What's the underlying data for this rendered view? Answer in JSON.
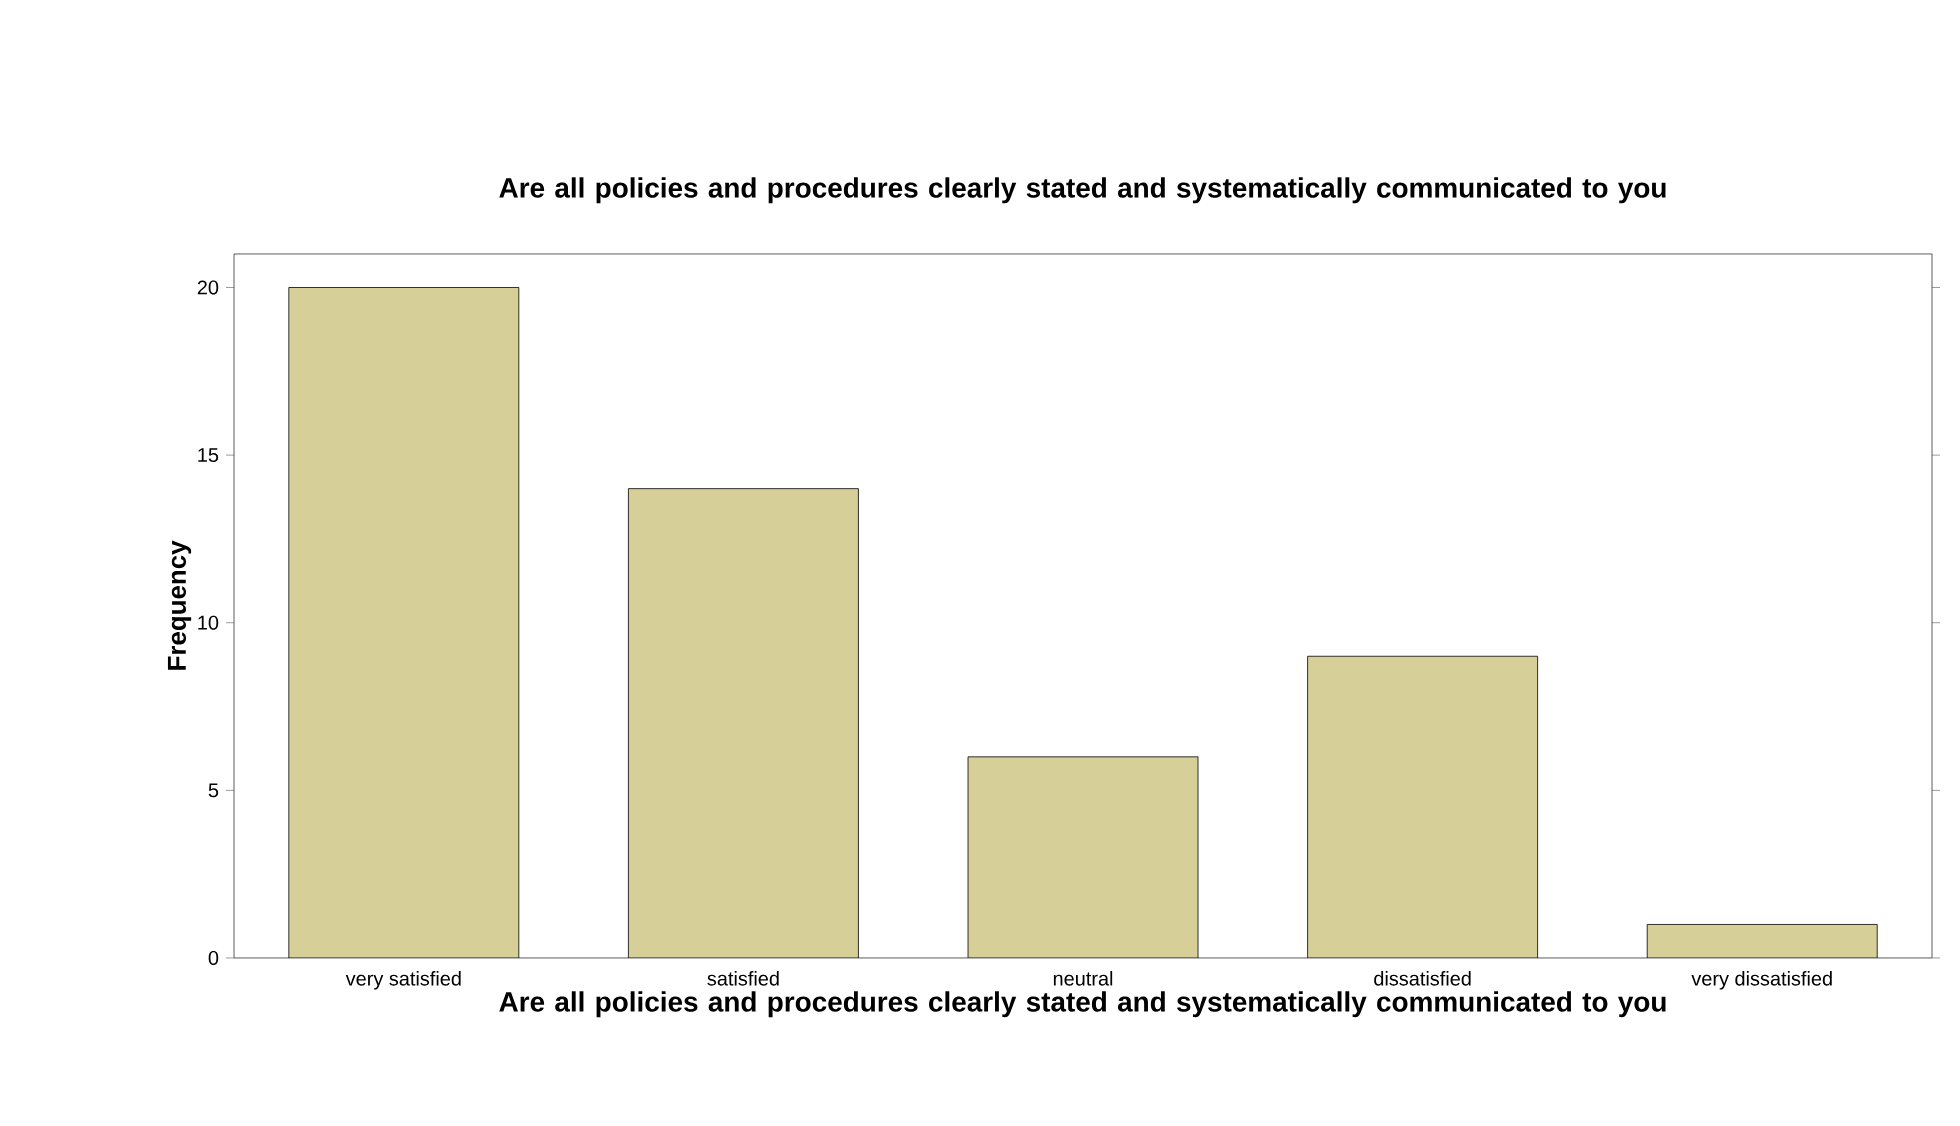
{
  "chart_data": {
    "type": "bar",
    "title": "Are all policies and procedures clearly stated and systematically communicated to you",
    "xlabel": "Are all policies and procedures clearly stated and systematically communicated to you",
    "ylabel": "Frequency",
    "categories": [
      "very satisfied",
      "satisfied",
      "neutral",
      "dissatisfied",
      "very dissatisfied"
    ],
    "values": [
      20,
      14,
      6,
      9,
      1
    ],
    "color": "#d6cf98",
    "ylim": [
      0,
      21
    ],
    "yticks": [
      0,
      5,
      10,
      15,
      20
    ],
    "grid": false
  }
}
